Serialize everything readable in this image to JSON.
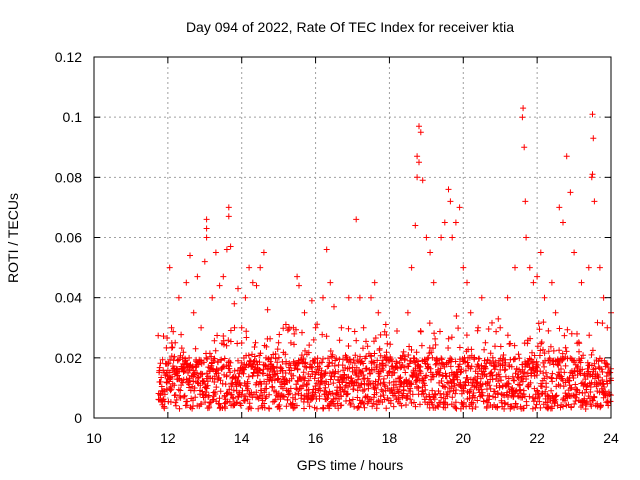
{
  "chart_data": {
    "type": "scatter",
    "title": "Day 094 of 2022, Rate Of TEC Index for receiver ktia",
    "xlabel": "GPS time / hours",
    "ylabel": "ROTI / TECUs",
    "xlim": [
      10,
      24
    ],
    "ylim": [
      0,
      0.12
    ],
    "x_ticks": [
      "10",
      "12",
      "14",
      "16",
      "18",
      "20",
      "22",
      "24"
    ],
    "y_ticks": [
      "0",
      "0.02",
      "0.04",
      "0.06",
      "0.08",
      "0.1",
      "0.12"
    ],
    "grid": true,
    "marker": "plus",
    "colors": {
      "series": "#ff0000",
      "grid": "#a0a0a0",
      "axes": "#000000"
    },
    "series": [
      {
        "x_start": 11.75,
        "x_end": 24.0,
        "x_step": 0.025,
        "baseline_note": "dense band of values between ~0.003 and ~0.02 across the observation window",
        "points": [
          [
            11.8,
            0.012
          ],
          [
            11.9,
            0.015
          ],
          [
            12.0,
            0.018
          ],
          [
            12.05,
            0.05
          ],
          [
            12.1,
            0.03
          ],
          [
            12.2,
            0.025
          ],
          [
            12.3,
            0.04
          ],
          [
            12.4,
            0.02
          ],
          [
            12.5,
            0.045
          ],
          [
            12.6,
            0.054
          ],
          [
            12.7,
            0.035
          ],
          [
            12.8,
            0.047
          ],
          [
            12.9,
            0.03
          ],
          [
            13.0,
            0.052
          ],
          [
            13.05,
            0.066
          ],
          [
            13.05,
            0.063
          ],
          [
            13.05,
            0.06
          ],
          [
            13.2,
            0.04
          ],
          [
            13.3,
            0.055
          ],
          [
            13.4,
            0.044
          ],
          [
            13.5,
            0.047
          ],
          [
            13.6,
            0.056
          ],
          [
            13.65,
            0.07
          ],
          [
            13.65,
            0.067
          ],
          [
            13.7,
            0.057
          ],
          [
            13.8,
            0.038
          ],
          [
            13.9,
            0.043
          ],
          [
            14.0,
            0.03
          ],
          [
            14.1,
            0.04
          ],
          [
            14.2,
            0.05
          ],
          [
            14.3,
            0.045
          ],
          [
            14.4,
            0.044
          ],
          [
            14.5,
            0.05
          ],
          [
            14.6,
            0.055
          ],
          [
            14.7,
            0.036
          ],
          [
            14.8,
            0.02
          ],
          [
            15.0,
            0.025
          ],
          [
            15.2,
            0.018
          ],
          [
            15.4,
            0.03
          ],
          [
            15.5,
            0.047
          ],
          [
            15.55,
            0.044
          ],
          [
            15.7,
            0.035
          ],
          [
            15.9,
            0.039
          ],
          [
            16.0,
            0.03
          ],
          [
            16.2,
            0.04
          ],
          [
            16.3,
            0.056
          ],
          [
            16.4,
            0.045
          ],
          [
            16.5,
            0.037
          ],
          [
            16.7,
            0.03
          ],
          [
            16.9,
            0.04
          ],
          [
            17.1,
            0.066
          ],
          [
            17.2,
            0.04
          ],
          [
            17.3,
            0.03
          ],
          [
            17.5,
            0.04
          ],
          [
            17.6,
            0.045
          ],
          [
            17.7,
            0.035
          ],
          [
            17.9,
            0.02
          ],
          [
            18.1,
            0.015
          ],
          [
            18.3,
            0.02
          ],
          [
            18.5,
            0.035
          ],
          [
            18.6,
            0.05
          ],
          [
            18.7,
            0.064
          ],
          [
            18.75,
            0.08
          ],
          [
            18.8,
            0.097
          ],
          [
            18.85,
            0.095
          ],
          [
            18.9,
            0.079
          ],
          [
            18.8,
            0.085
          ],
          [
            18.75,
            0.087
          ],
          [
            19.0,
            0.06
          ],
          [
            19.1,
            0.055
          ],
          [
            19.2,
            0.045
          ],
          [
            19.4,
            0.06
          ],
          [
            19.5,
            0.065
          ],
          [
            19.6,
            0.076
          ],
          [
            19.65,
            0.072
          ],
          [
            19.7,
            0.06
          ],
          [
            19.8,
            0.065
          ],
          [
            19.9,
            0.07
          ],
          [
            20.0,
            0.05
          ],
          [
            20.1,
            0.045
          ],
          [
            20.2,
            0.035
          ],
          [
            20.4,
            0.03
          ],
          [
            20.5,
            0.04
          ],
          [
            20.6,
            0.025
          ],
          [
            20.8,
            0.02
          ],
          [
            21.0,
            0.03
          ],
          [
            21.2,
            0.04
          ],
          [
            21.4,
            0.05
          ],
          [
            21.6,
            0.1
          ],
          [
            21.62,
            0.103
          ],
          [
            21.65,
            0.09
          ],
          [
            21.68,
            0.072
          ],
          [
            21.7,
            0.06
          ],
          [
            21.8,
            0.05
          ],
          [
            21.9,
            0.045
          ],
          [
            22.0,
            0.047
          ],
          [
            22.1,
            0.055
          ],
          [
            22.2,
            0.04
          ],
          [
            22.4,
            0.045
          ],
          [
            22.5,
            0.035
          ],
          [
            22.6,
            0.07
          ],
          [
            22.7,
            0.065
          ],
          [
            22.8,
            0.087
          ],
          [
            22.9,
            0.075
          ],
          [
            23.0,
            0.055
          ],
          [
            23.2,
            0.045
          ],
          [
            23.4,
            0.05
          ],
          [
            23.5,
            0.101
          ],
          [
            23.52,
            0.093
          ],
          [
            23.5,
            0.081
          ],
          [
            23.48,
            0.08
          ],
          [
            23.55,
            0.072
          ],
          [
            23.7,
            0.05
          ],
          [
            23.8,
            0.04
          ],
          [
            23.9,
            0.03
          ],
          [
            24.0,
            0.035
          ]
        ]
      }
    ]
  }
}
